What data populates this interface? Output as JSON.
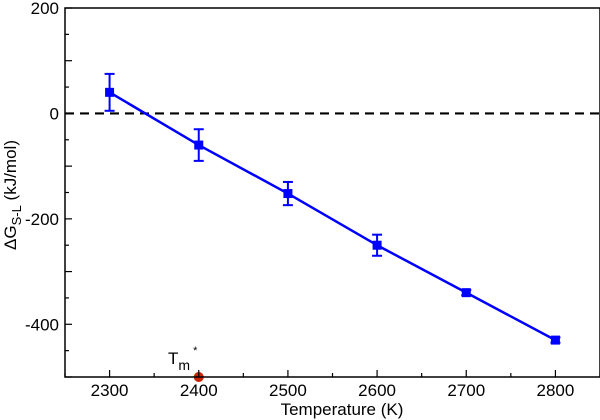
{
  "chart_data": {
    "type": "line",
    "xlabel": "Temperature (K)",
    "ylabel": {
      "prefix": "ΔG",
      "subscript": "S-L",
      "suffix": " (kJ/mol)"
    },
    "xlim": [
      2250,
      2850
    ],
    "ylim": [
      -500,
      200
    ],
    "xticks": [
      2300,
      2400,
      2500,
      2600,
      2700,
      2800
    ],
    "yticks": [
      200,
      0,
      -200,
      -400
    ],
    "ytick_labels": [
      "200",
      "0",
      "-200",
      "-400"
    ],
    "grid": false,
    "reference_line": {
      "y": 0,
      "style": "dashed",
      "color": "#000000"
    },
    "series": [
      {
        "color": "#0000ff",
        "marker": "square",
        "x": [
          2300,
          2400,
          2500,
          2600,
          2700,
          2800
        ],
        "y": [
          40,
          -60,
          -152,
          -250,
          -340,
          -430
        ],
        "yerr": [
          35,
          30,
          22,
          20,
          5,
          5
        ]
      }
    ],
    "annotation": {
      "label": "T",
      "subscript": "m",
      "superscript": "*",
      "x": 2400,
      "y": -500,
      "marker_color": "#cc2200"
    }
  }
}
